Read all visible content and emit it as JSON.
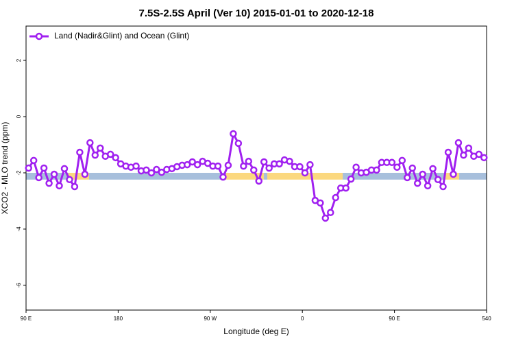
{
  "chart_data": {
    "type": "line",
    "title": "7.5S-2.5S April (Ver 10)   2015-01-01 to 2020-12-18",
    "x_label": "Longitude (deg E)",
    "y_label": "XCO2 - MLO trend (ppm)",
    "xlim": [
      90,
      540
    ],
    "ylim": [
      -6.88,
      3.22
    ],
    "xticks": [
      {
        "value": 90,
        "label": "90 E"
      },
      180,
      {
        "value": 270,
        "label": "90 W"
      },
      {
        "value": 360,
        "label": "0"
      },
      {
        "value": 450,
        "label": "90 E"
      },
      540
    ],
    "yticks": [
      -6,
      -4,
      -2,
      0,
      2
    ],
    "legend": "top-left",
    "x": [
      92.5,
      97.5,
      102.5,
      107.5,
      112.5,
      117.5,
      122.5,
      127.5,
      132.5,
      137.5,
      142.5,
      147.5,
      152.5,
      157.5,
      162.5,
      167.5,
      172.5,
      177.5,
      182.5,
      187.5,
      192.5,
      197.5,
      202.5,
      207.5,
      212.5,
      217.5,
      222.5,
      227.5,
      232.5,
      237.5,
      242.5,
      247.5,
      252.5,
      257.5,
      262.5,
      267.5,
      272.5,
      277.5,
      282.5,
      287.5,
      292.5,
      297.5,
      302.5,
      307.5,
      312.5,
      317.5,
      322.5,
      327.5,
      332.5,
      337.5,
      342.5,
      347.5,
      352.5,
      357.5,
      362.5,
      367.5,
      372.5,
      377.5,
      382.5,
      387.5,
      392.5,
      397.5,
      402.5,
      407.5,
      412.5,
      417.5,
      422.5,
      427.5,
      432.5,
      437.5,
      442.5,
      447.5,
      452.5,
      457.5,
      462.5,
      467.5,
      472.5,
      477.5,
      482.5,
      487.5,
      492.5,
      497.5,
      502.5,
      507.5,
      512.5,
      517.5,
      522.5,
      527.5,
      532.5,
      537.5
    ],
    "series": [
      {
        "name": "Land (Nadir&Glint) and Ocean (Glint)",
        "color": "#a020f0",
        "values": [
          -1.83,
          -1.56,
          -2.17,
          -1.83,
          -2.37,
          -2.05,
          -2.46,
          -1.85,
          -2.24,
          -2.49,
          -1.27,
          -2.05,
          -0.93,
          -1.37,
          -1.12,
          -1.41,
          -1.34,
          -1.46,
          -1.68,
          -1.76,
          -1.8,
          -1.76,
          -1.93,
          -1.9,
          -2.0,
          -1.88,
          -1.98,
          -1.88,
          -1.85,
          -1.78,
          -1.73,
          -1.71,
          -1.61,
          -1.71,
          -1.59,
          -1.66,
          -1.76,
          -1.76,
          -2.15,
          -1.73,
          -0.61,
          -0.95,
          -1.76,
          -1.59,
          -1.9,
          -2.29,
          -1.61,
          -1.83,
          -1.68,
          -1.68,
          -1.54,
          -1.59,
          -1.78,
          -1.78,
          -2.0,
          -1.71,
          -2.98,
          -3.07,
          -3.61,
          -3.41,
          -2.88,
          -2.54,
          -2.54,
          -2.22,
          -1.8,
          -2.0,
          -1.98,
          -1.9,
          -1.9,
          -1.63,
          -1.63,
          -1.63,
          -1.8,
          -1.56,
          -2.17,
          -1.83,
          -2.37,
          -2.05,
          -2.46,
          -1.85,
          -2.24,
          -2.49,
          -1.27,
          -2.05,
          -0.93,
          -1.37,
          -1.12,
          -1.41,
          -1.34,
          -1.46
        ]
      }
    ],
    "band_ylim": [
      -2.24,
      -2.0
    ],
    "bands": [
      {
        "from": 90,
        "to": 131.5,
        "color": "#a7bfdc"
      },
      {
        "from": 131.5,
        "to": 151.6,
        "color": "#fbd87f"
      },
      {
        "from": 151.6,
        "to": 285.5,
        "color": "#a7bfdc"
      },
      {
        "from": 285.5,
        "to": 322.4,
        "color": "#fbd87f"
      },
      {
        "from": 322.4,
        "to": 325.7,
        "color": "#a7bfdc"
      },
      {
        "from": 325.7,
        "to": 399.4,
        "color": "#fbd87f"
      },
      {
        "from": 399.4,
        "to": 499.8,
        "color": "#a7bfdc"
      },
      {
        "from": 499.8,
        "to": 513.2,
        "color": "#fbd87f"
      },
      {
        "from": 513.2,
        "to": 540,
        "color": "#a7bfdc"
      }
    ]
  }
}
